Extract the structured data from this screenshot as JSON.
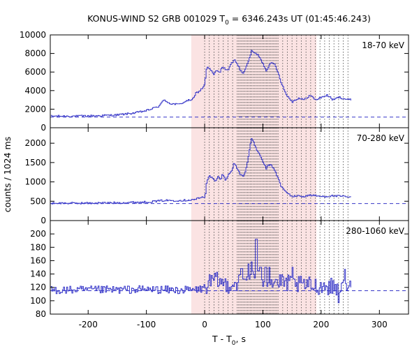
{
  "chart_data": {
    "type": "line",
    "title": "KONUS-WIND S2 GRB 001029 T",
    "title_subscript": "0",
    "title_tail": " = 6346.243s UT (01:45:46.243)",
    "xlabel": "T - T",
    "xlabel_subscript": "0",
    "xlabel_tail": ", s",
    "ylabel": "counts / 1024 ms",
    "xlim": [
      -265,
      350
    ],
    "xticks": [
      -200,
      -100,
      0,
      100,
      200,
      300
    ],
    "xtick_labels": [
      "-200",
      "-100",
      "0",
      "100",
      "200",
      "300"
    ],
    "highlight_span": [
      -23,
      192
    ],
    "highlight_color": "#fbe3e3",
    "data_color": "#3535c8",
    "dotted_line_color": "#444444",
    "grid": false,
    "panels": [
      {
        "band": "18-70 keV",
        "ylim": [
          0,
          10000
        ],
        "yticks": [
          0,
          2000,
          4000,
          6000,
          8000,
          10000
        ],
        "ytick_labels": [
          "0",
          "2000",
          "4000",
          "6000",
          "8000",
          "10000"
        ],
        "background": 1150,
        "curve": [
          [
            -265,
            1250
          ],
          [
            -220,
            1250
          ],
          [
            -180,
            1300
          ],
          [
            -150,
            1380
          ],
          [
            -120,
            1600
          ],
          [
            -100,
            1850
          ],
          [
            -80,
            2300
          ],
          [
            -70,
            3000
          ],
          [
            -60,
            2600
          ],
          [
            -45,
            2500
          ],
          [
            -35,
            2800
          ],
          [
            -28,
            2950
          ],
          [
            -20,
            3100
          ],
          [
            -15,
            3800
          ],
          [
            -10,
            3900
          ],
          [
            -3,
            4400
          ],
          [
            0,
            4900
          ],
          [
            3,
            6700
          ],
          [
            6,
            6400
          ],
          [
            10,
            6200
          ],
          [
            15,
            5700
          ],
          [
            20,
            6200
          ],
          [
            25,
            5900
          ],
          [
            30,
            6600
          ],
          [
            35,
            6300
          ],
          [
            40,
            6200
          ],
          [
            45,
            6900
          ],
          [
            50,
            7300
          ],
          [
            55,
            7000
          ],
          [
            60,
            6200
          ],
          [
            65,
            5900
          ],
          [
            70,
            6400
          ],
          [
            75,
            7300
          ],
          [
            80,
            8300
          ],
          [
            85,
            8000
          ],
          [
            90,
            7900
          ],
          [
            95,
            7500
          ],
          [
            100,
            6800
          ],
          [
            105,
            6200
          ],
          [
            110,
            6700
          ],
          [
            115,
            7000
          ],
          [
            120,
            6800
          ],
          [
            125,
            6000
          ],
          [
            130,
            5000
          ],
          [
            135,
            4200
          ],
          [
            140,
            3500
          ],
          [
            150,
            2800
          ],
          [
            160,
            3200
          ],
          [
            170,
            3000
          ],
          [
            180,
            3500
          ],
          [
            190,
            3000
          ],
          [
            200,
            3300
          ],
          [
            210,
            3500
          ],
          [
            220,
            3000
          ],
          [
            230,
            3300
          ],
          [
            240,
            3100
          ],
          [
            250,
            3000
          ]
        ]
      },
      {
        "band": "70-280 keV",
        "ylim": [
          0,
          2400
        ],
        "yticks": [
          0,
          500,
          1000,
          1500,
          2000
        ],
        "ytick_labels": [
          "0",
          "500",
          "1000",
          "1500",
          "2000"
        ],
        "background": 440,
        "curve": [
          [
            -265,
            450
          ],
          [
            -200,
            450
          ],
          [
            -150,
            460
          ],
          [
            -100,
            480
          ],
          [
            -70,
            520
          ],
          [
            -40,
            520
          ],
          [
            -20,
            540
          ],
          [
            -5,
            600
          ],
          [
            0,
            620
          ],
          [
            3,
            1050
          ],
          [
            8,
            1150
          ],
          [
            12,
            1100
          ],
          [
            18,
            1000
          ],
          [
            22,
            1150
          ],
          [
            26,
            1050
          ],
          [
            30,
            1200
          ],
          [
            35,
            1050
          ],
          [
            40,
            1200
          ],
          [
            45,
            1250
          ],
          [
            50,
            1500
          ],
          [
            55,
            1350
          ],
          [
            60,
            1200
          ],
          [
            65,
            1150
          ],
          [
            70,
            1300
          ],
          [
            75,
            1700
          ],
          [
            80,
            2150
          ],
          [
            85,
            1950
          ],
          [
            90,
            1800
          ],
          [
            95,
            1650
          ],
          [
            100,
            1500
          ],
          [
            105,
            1350
          ],
          [
            110,
            1450
          ],
          [
            115,
            1400
          ],
          [
            120,
            1300
          ],
          [
            125,
            1100
          ],
          [
            130,
            900
          ],
          [
            135,
            800
          ],
          [
            140,
            720
          ],
          [
            150,
            620
          ],
          [
            160,
            640
          ],
          [
            170,
            620
          ],
          [
            180,
            660
          ],
          [
            190,
            640
          ],
          [
            200,
            620
          ],
          [
            220,
            640
          ],
          [
            240,
            620
          ],
          [
            250,
            600
          ]
        ]
      },
      {
        "band": "280-1060 keV",
        "ylim": [
          80,
          220
        ],
        "yticks": [
          80,
          100,
          120,
          140,
          160,
          180,
          200
        ],
        "ytick_labels": [
          "80",
          "100",
          "120",
          "140",
          "160",
          "180",
          "200"
        ],
        "background": 115,
        "noise_amplitude": 6,
        "noise_amplitude_burst": 13,
        "curve": [
          [
            -265,
            116
          ],
          [
            -200,
            116
          ],
          [
            -100,
            117
          ],
          [
            -50,
            116
          ],
          [
            -20,
            116
          ],
          [
            -5,
            118
          ],
          [
            0,
            121
          ],
          [
            10,
            128
          ],
          [
            20,
            130
          ],
          [
            30,
            126
          ],
          [
            40,
            124
          ],
          [
            50,
            126
          ],
          [
            60,
            128
          ],
          [
            70,
            132
          ],
          [
            80,
            136
          ],
          [
            90,
            134
          ],
          [
            100,
            132
          ],
          [
            110,
            130
          ],
          [
            120,
            128
          ],
          [
            140,
            126
          ],
          [
            160,
            124
          ],
          [
            180,
            123
          ],
          [
            200,
            122
          ],
          [
            220,
            121
          ],
          [
            240,
            120
          ],
          [
            250,
            120
          ]
        ],
        "spikes": [
          [
            63,
            148
          ],
          [
            75,
            155
          ],
          [
            80,
            158
          ],
          [
            88,
            192
          ],
          [
            95,
            150
          ],
          [
            104,
            150
          ],
          [
            110,
            150
          ],
          [
            150,
            150
          ],
          [
            229,
            97
          ],
          [
            240,
            147
          ]
        ]
      }
    ]
  }
}
